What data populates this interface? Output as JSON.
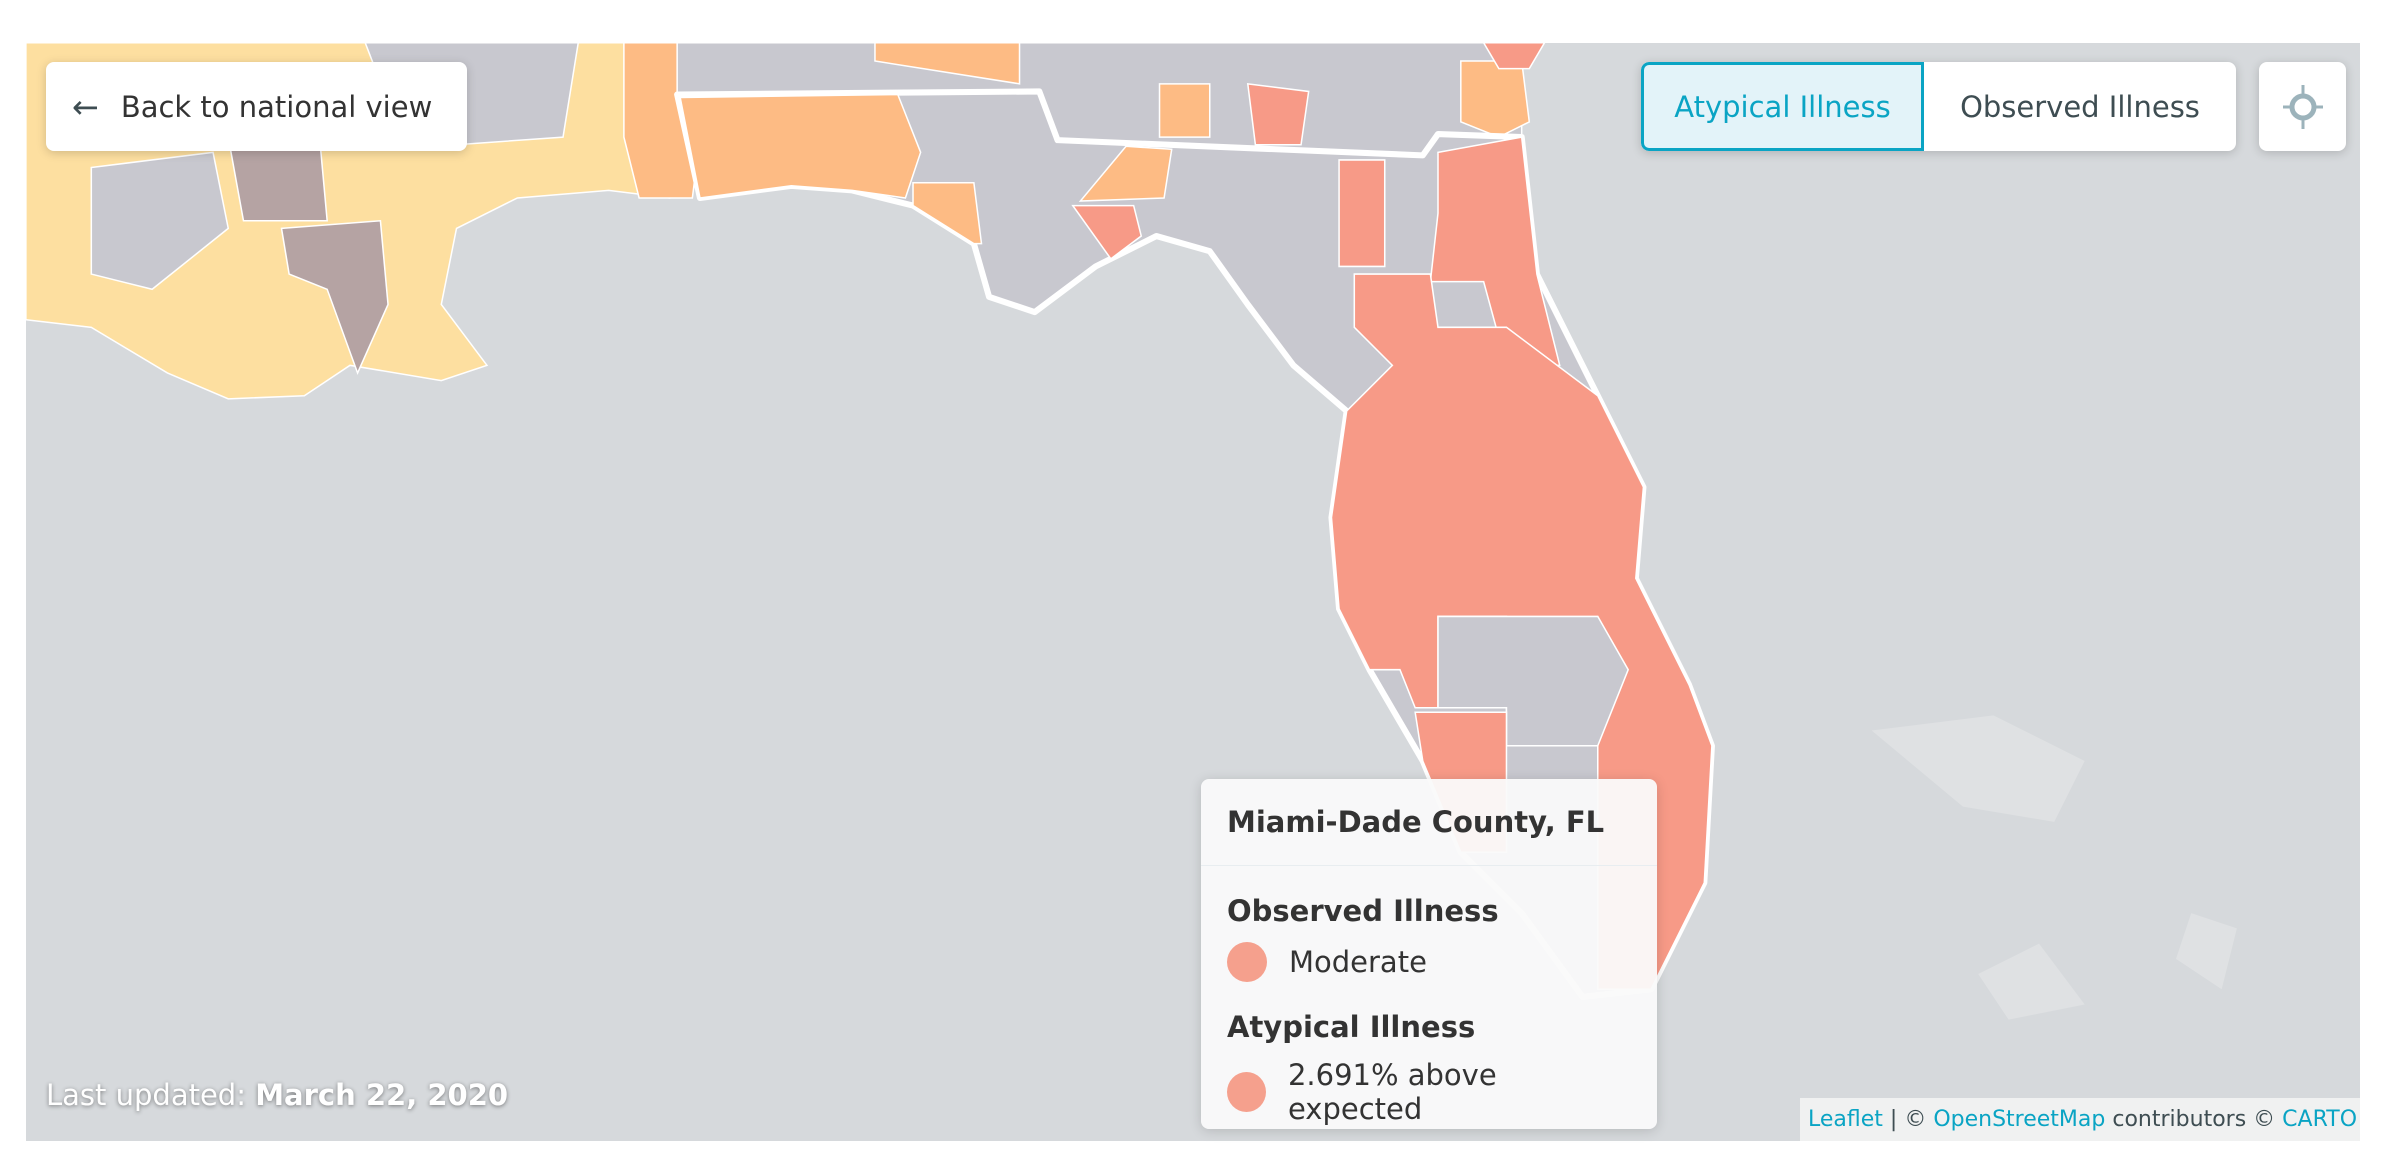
{
  "back_button": {
    "label": "Back to national view",
    "icon": "arrow-left-icon"
  },
  "toggle": {
    "options": [
      "Atypical Illness",
      "Observed Illness"
    ],
    "active": "Atypical Illness"
  },
  "locate_button": {
    "icon": "crosshair-icon"
  },
  "tooltip": {
    "county": "Miami-Dade County, FL",
    "observed_label": "Observed Illness",
    "observed_value": "Moderate",
    "atypical_label": "Atypical Illness",
    "atypical_value": "2.691% above expected",
    "dot_color": "#f5a08d"
  },
  "last_updated": {
    "label": "Last updated:",
    "date": "March 22, 2020"
  },
  "attribution": {
    "leaflet": "Leaflet",
    "sep": "|",
    "copy1": "©",
    "osm": "OpenStreetMap",
    "contributors": "contributors ©",
    "carto": "CARTO"
  },
  "colors": {
    "accent": "#0aa4c4",
    "moderate": "#f79a87",
    "elevated": "#fdbb84",
    "low": "#fddfa0",
    "none": "#c8c8cf",
    "high": "#b5a3a3",
    "water": "#d6d9dc"
  }
}
